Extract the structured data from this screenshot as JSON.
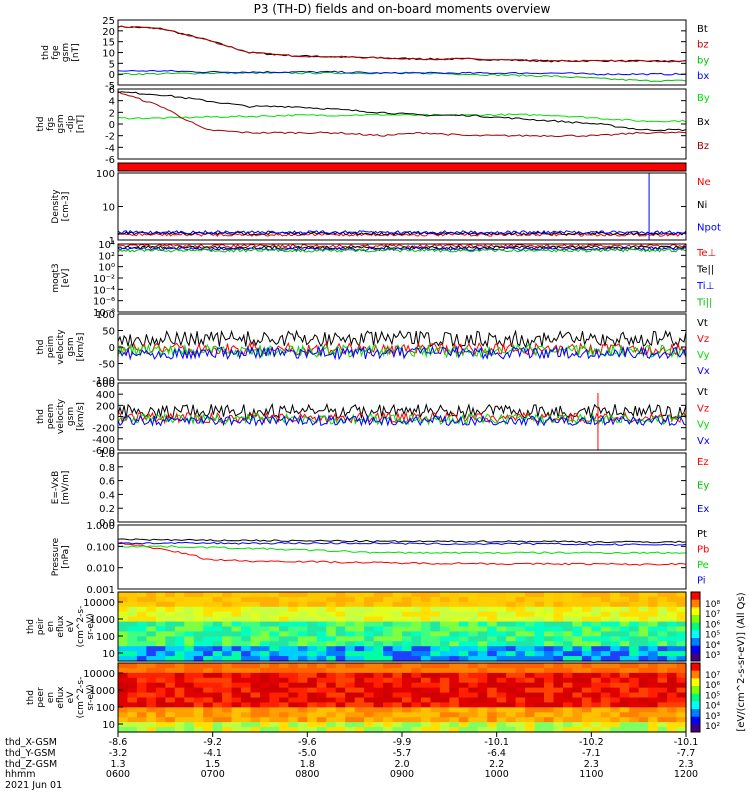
{
  "title": "P3 (TH-D) fields and on-board moments overview",
  "chart_data": [
    {
      "type": "line",
      "ylabel": [
        "thd",
        "fge",
        "gsm",
        "[nT]"
      ],
      "ticks": [
        "25",
        "20",
        "15",
        "10",
        "5",
        "0",
        "-5"
      ],
      "series": [
        {
          "name": "Bt",
          "color": "#000000",
          "values": [
            22,
            21,
            16,
            10,
            8.5,
            8,
            7.5,
            7,
            7,
            6.5,
            6,
            6.2,
            6,
            6
          ]
        },
        {
          "name": "bz",
          "color": "#c00000",
          "values": [
            22,
            21,
            16,
            10,
            8.5,
            8,
            7.5,
            7,
            7,
            6.5,
            6,
            6.2,
            6,
            6
          ]
        },
        {
          "name": "by",
          "color": "#00c000",
          "values": [
            0,
            0.2,
            0.5,
            0.5,
            0.5,
            0.5,
            0.5,
            0.5,
            0,
            -0.5,
            -1,
            -2,
            -3,
            -3
          ]
        },
        {
          "name": "bx",
          "color": "#0000ff",
          "values": [
            1.5,
            1.5,
            1,
            1,
            1,
            1,
            0.5,
            0.5,
            0.5,
            0.5,
            0.5,
            0,
            0,
            0
          ]
        }
      ]
    },
    {
      "type": "line",
      "ylabel": [
        "thd",
        "fgs",
        "gsm",
        "-dip",
        "[nT]"
      ],
      "ticks": [
        "6",
        "4",
        "2",
        "0",
        "-2",
        "-4",
        "-6"
      ],
      "series": [
        {
          "name": "By",
          "color": "#00e000",
          "values": [
            1,
            1,
            1.2,
            1.3,
            1.5,
            1.5,
            1.6,
            1.5,
            1.5,
            1.6,
            1.5,
            1,
            0.5,
            0.5
          ]
        },
        {
          "name": "Bx",
          "color": "#000000",
          "values": [
            5.5,
            5,
            4,
            3,
            3,
            2.5,
            2,
            1.5,
            1.5,
            1,
            0.5,
            0,
            -1,
            -1
          ]
        },
        {
          "name": "Bz",
          "color": "#a00000",
          "values": [
            5.5,
            3,
            -1,
            -1.5,
            -1.5,
            -1.5,
            -2,
            -1.5,
            -2,
            -2,
            -2,
            -2,
            -1.5,
            -1.5
          ]
        }
      ]
    },
    {
      "type": "line",
      "ylabel": [
        "Density",
        "[cm-3]"
      ],
      "ticks": [
        "100",
        "10",
        "1"
      ],
      "series": [
        {
          "name": "Ne",
          "color": "#ff0000",
          "values": []
        },
        {
          "name": "Ni",
          "color": "#000000",
          "values": []
        },
        {
          "name": "Npot",
          "color": "#0000ff",
          "values": []
        }
      ]
    },
    {
      "type": "line",
      "ylabel": [
        "moqt3",
        "[eV]"
      ],
      "ticks": [
        "10⁴",
        "10²",
        "10⁰",
        "10⁻²",
        "10⁻⁴",
        "10⁻⁶",
        "10⁻⁸"
      ],
      "series": [
        {
          "name": "Te⊥",
          "color": "#ff0000",
          "values": []
        },
        {
          "name": "Te||",
          "color": "#000000",
          "values": []
        },
        {
          "name": "Ti⊥",
          "color": "#0000ff",
          "values": []
        },
        {
          "name": "Ti||",
          "color": "#00c000",
          "values": []
        }
      ]
    },
    {
      "type": "line",
      "ylabel": [
        "thd",
        "peim",
        "velocity",
        "gsm",
        "[km/s]"
      ],
      "ticks": [
        "100",
        "50",
        "0",
        "-50",
        "-100"
      ],
      "series": [
        {
          "name": "Vt",
          "color": "#000000",
          "values": []
        },
        {
          "name": "Vz",
          "color": "#ff0000",
          "values": []
        },
        {
          "name": "Vy",
          "color": "#00e000",
          "values": []
        },
        {
          "name": "Vx",
          "color": "#0000ff",
          "values": []
        }
      ]
    },
    {
      "type": "line",
      "ylabel": [
        "thd",
        "peem",
        "velocity",
        "gsm",
        "[km/s]"
      ],
      "ticks": [
        "600",
        "400",
        "200",
        "0",
        "-200",
        "-400",
        "-600"
      ],
      "series": [
        {
          "name": "Vt",
          "color": "#000000",
          "values": []
        },
        {
          "name": "Vz",
          "color": "#ff0000",
          "values": []
        },
        {
          "name": "Vy",
          "color": "#00e000",
          "values": []
        },
        {
          "name": "Vx",
          "color": "#0000ff",
          "values": []
        }
      ]
    },
    {
      "type": "line",
      "ylabel": [
        "E=-VxB",
        "[mV/m]"
      ],
      "ticks": [
        "1.0",
        "0.8",
        "0.6",
        "0.4",
        "0.2",
        "0.0"
      ],
      "series": [
        {
          "name": "Ez",
          "color": "#ff0000",
          "values": []
        },
        {
          "name": "Ey",
          "color": "#00c000",
          "values": []
        },
        {
          "name": "Ex",
          "color": "#0000ff",
          "values": []
        }
      ]
    },
    {
      "type": "line",
      "ylabel": [
        "Pressure",
        "[nPa]"
      ],
      "ticks": [
        "1.000",
        "0.100",
        "0.010",
        "0.001"
      ],
      "series": [
        {
          "name": "Pt",
          "color": "#000000",
          "values": [
            0.22,
            0.2,
            0.19,
            0.19,
            0.18,
            0.18,
            0.17,
            0.17,
            0.17,
            0.17,
            0.17,
            0.16,
            0.16,
            0.16
          ]
        },
        {
          "name": "Pb",
          "color": "#ff0000",
          "values": [
            0.15,
            0.07,
            0.025,
            0.02,
            0.02,
            0.018,
            0.017,
            0.016,
            0.016,
            0.015,
            0.015,
            0.015,
            0.014,
            0.015
          ]
        },
        {
          "name": "Pe",
          "color": "#00e000",
          "values": [
            0.1,
            0.1,
            0.09,
            0.08,
            0.07,
            0.06,
            0.05,
            0.05,
            0.05,
            0.05,
            0.05,
            0.05,
            0.05,
            0.05
          ]
        },
        {
          "name": "Pi",
          "color": "#0000ff",
          "values": [
            0.14,
            0.14,
            0.14,
            0.14,
            0.14,
            0.14,
            0.14,
            0.13,
            0.13,
            0.13,
            0.13,
            0.12,
            0.12,
            0.12
          ]
        }
      ]
    },
    {
      "type": "heatmap",
      "ylabel": [
        "thd",
        "peir",
        "en",
        "eflux",
        "eV",
        "(cm^2-s-",
        "sr-eV)"
      ],
      "ticks": [
        "10000",
        "1000",
        "100",
        "10"
      ]
    },
    {
      "type": "heatmap",
      "ylabel": [
        "thd",
        "peer",
        "en",
        "eflux",
        "eV",
        "(cm^2-s-",
        "sr-eV)"
      ],
      "ticks": [
        "10000",
        "1000",
        "100",
        "10"
      ]
    }
  ],
  "colorbar1": {
    "ticks": [
      "10⁸",
      "10⁷",
      "10⁶",
      "10⁵",
      "10⁴",
      "10³"
    ]
  },
  "colorbar2": {
    "ticks": [
      "10⁷",
      "10⁶",
      "10⁵",
      "10⁴",
      "10³",
      "10²"
    ]
  },
  "colorbar_label": "[eV/(cm^2-s-sr-eV)] (All Qs)",
  "xaxis": {
    "row_labels": [
      "thd_X-GSM",
      "thd_Y-GSM",
      "thd_Z-GSM",
      "hhmm",
      "2021 Jun 01"
    ],
    "cols": [
      [
        "-8.6",
        "-3.2",
        "1.3",
        "0600"
      ],
      [
        "-9.2",
        "-4.1",
        "1.5",
        "0700"
      ],
      [
        "-9.6",
        "-5.0",
        "1.8",
        "0800"
      ],
      [
        "-9.9",
        "-5.7",
        "2.0",
        "0900"
      ],
      [
        "-10.1",
        "-6.4",
        "2.2",
        "1000"
      ],
      [
        "-10.2",
        "-7.1",
        "2.3",
        "1100"
      ],
      [
        "-10.1",
        "-7.7",
        "2.3",
        "1200"
      ]
    ]
  }
}
